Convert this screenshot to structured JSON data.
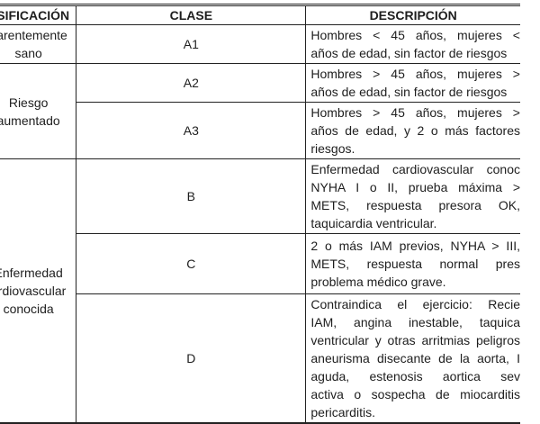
{
  "headers": {
    "clasificacion": "ASIFICACIÓN",
    "clase": "CLASE",
    "descripcion": "DESCRIPCIÓN"
  },
  "groups": {
    "sano": [
      "parentemente",
      "sano"
    ],
    "riesgo": [
      "Riesgo",
      "aumentado"
    ],
    "enfermedad": [
      "Enfermedad",
      "ardiovascular",
      "conocida"
    ]
  },
  "rows": [
    {
      "clase": "A1",
      "lines": [
        "Hombres < 45 años, mujeres <",
        "años de edad, sin factor de riesgos"
      ]
    },
    {
      "clase": "A2",
      "lines": [
        "Hombres > 45 años, mujeres >",
        "años de edad, sin factor de riesgos"
      ]
    },
    {
      "clase": "A3",
      "lines": [
        "Hombres > 45 años, mujeres >",
        "años de edad, y 2 o más factores",
        "riesgos."
      ]
    },
    {
      "clase": "B",
      "lines": [
        "Enfermedad cardiovascular conoc",
        "NYHA I o II, prueba máxima >",
        "METS, respuesta presora OK,",
        "taquicardia ventricular."
      ]
    },
    {
      "clase": "C",
      "lines": [
        "2 o más IAM previos, NYHA > III,",
        "METS, respuesta normal pres",
        "problema médico grave."
      ]
    },
    {
      "clase": "D",
      "lines": [
        "Contraindica el ejercicio: Recie",
        "IAM, angina inestable, taquica",
        "ventricular y otras arritmias peligros",
        "aneurisma disecante de la aorta, I",
        "aguda, estenosis aortica sev",
        "activa o sospecha de miocarditis",
        "pericarditis."
      ]
    }
  ]
}
